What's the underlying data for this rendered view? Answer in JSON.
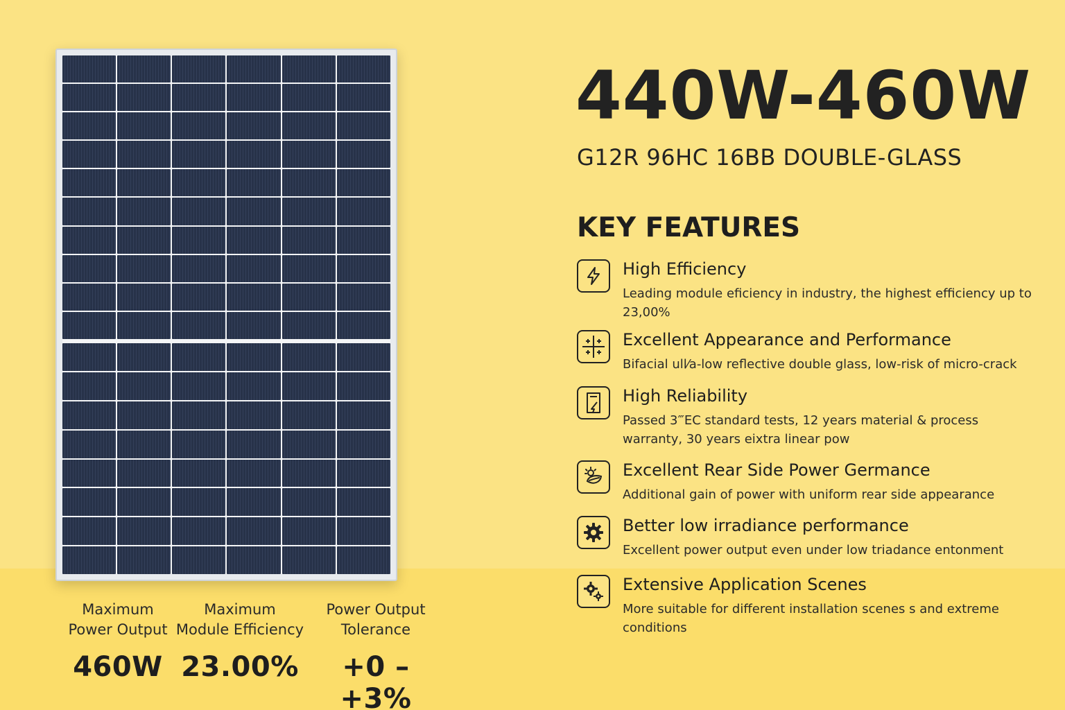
{
  "headline": "440W-460W",
  "subheadline": "G12R 96HC 16BB DOUBLE-GLASS",
  "features_title": "KEY FEATURES",
  "features": [
    {
      "icon": "lightning-icon",
      "title": "High Efficiency",
      "desc": "Leading module eficiency in industry, the highest efficiency up to 23,00%"
    },
    {
      "icon": "grid-plus-icon",
      "title": "Excellent Appearance and Performance",
      "desc": "Bifacial ull⁄a-low reflective double glass, low-risk of micro-crack"
    },
    {
      "icon": "document-shield-icon",
      "title": "High Reliability",
      "desc": "Passed 3‴EC standard tests, 12 years material & process warranty, 30 years eixtra linear pow"
    },
    {
      "icon": "leaf-sun-icon",
      "title": "Excellent Rear Side Power Germance",
      "desc": "Additional gain of power with uniform rear  side appearance"
    },
    {
      "icon": "gear-icon",
      "title": "Better low irradiance performance",
      "desc": "Excellent power output even under low triadance entonment"
    },
    {
      "icon": "gears-icon",
      "title": "Extensive Application Scenes",
      "desc": "More suitable for different installation scenes s and extreme conditions"
    }
  ],
  "specs": [
    {
      "label": "Maximum\nPower Output",
      "value": "460W"
    },
    {
      "label": "Maximum\nModule Efficiency",
      "value": "23.00%"
    },
    {
      "label": "Power Output\nTolerance",
      "value": "+0 –+3%"
    }
  ],
  "colors": {
    "background": "#fbe384",
    "band": "#fbdd6a",
    "cell": "#273249",
    "text": "#1e1e1e"
  }
}
